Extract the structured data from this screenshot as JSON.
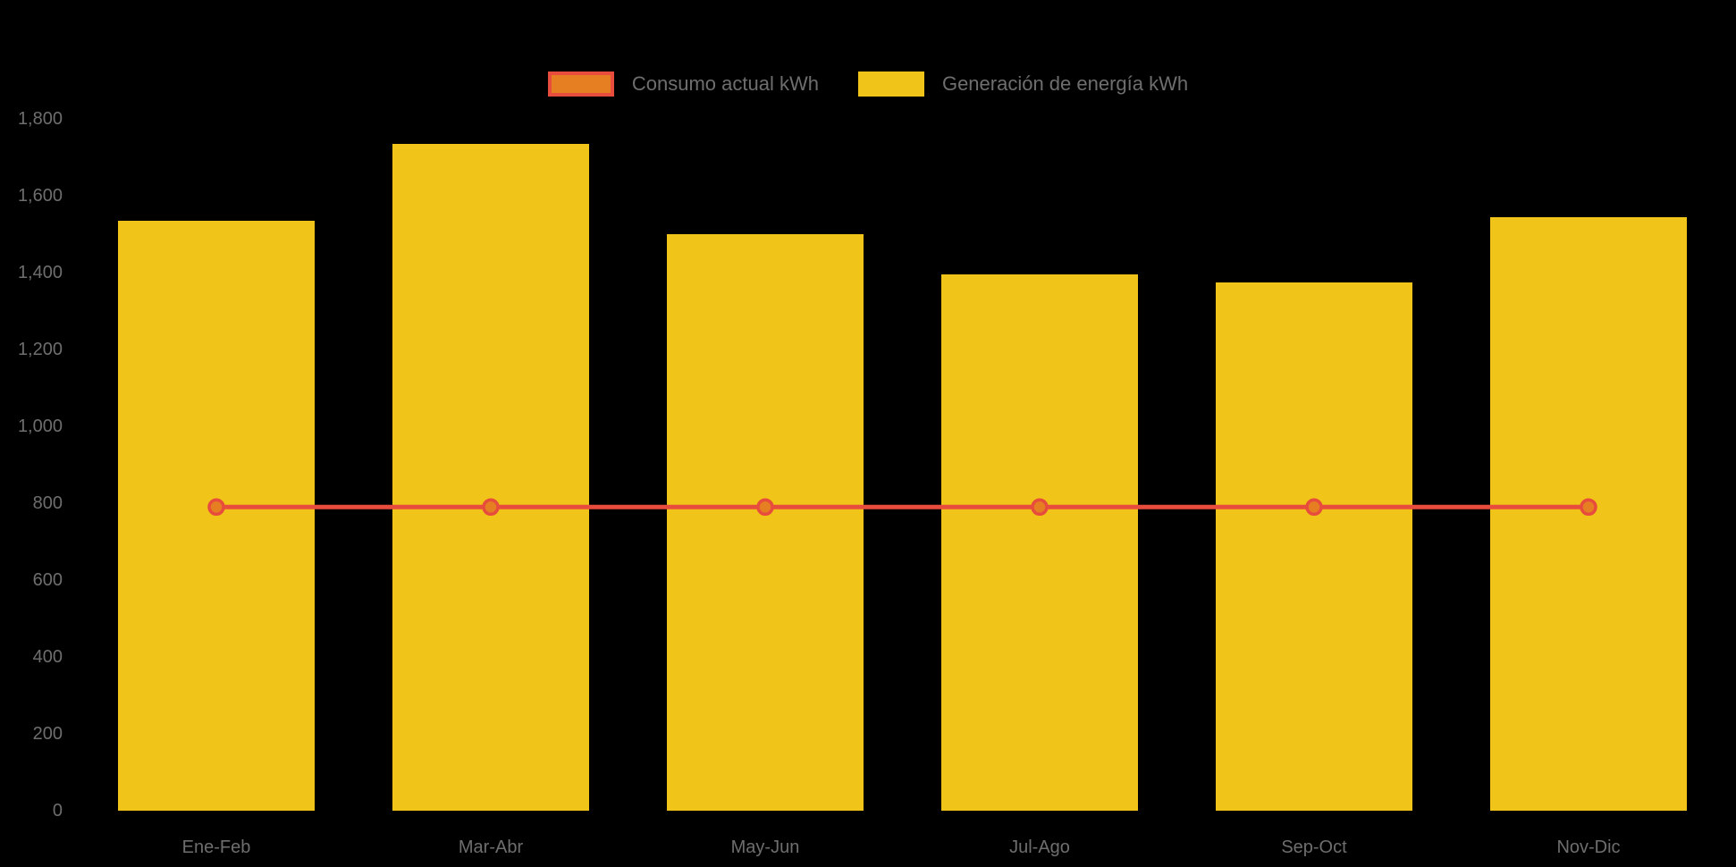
{
  "page": {
    "background": "#000000",
    "text_muted": "#6e6e6e"
  },
  "legend": {
    "items": [
      {
        "label": "Consumo actual kWh",
        "swatch_fill": "#e67e22",
        "swatch_border": "#e74c3c",
        "series_type": "line"
      },
      {
        "label": "Generación de energía kWh",
        "swatch_fill": "#f0c419",
        "swatch_border": "#f0c419",
        "series_type": "bar"
      }
    ]
  },
  "chart_data": {
    "type": "bar",
    "subtype": "bar-line-combo",
    "title": "",
    "xlabel": "",
    "ylabel": "",
    "categories": [
      "Ene-Feb",
      "Mar-Abr",
      "May-Jun",
      "Jul-Ago",
      "Sep-Oct",
      "Nov-Dic"
    ],
    "series": [
      {
        "name": "Generación de energía kWh",
        "type": "bar",
        "color": "#f0c419",
        "values": [
          1535,
          1735,
          1500,
          1395,
          1375,
          1545
        ]
      },
      {
        "name": "Consumo actual kWh",
        "type": "line",
        "color": "#e74c3c",
        "marker_fill": "#e67e22",
        "marker_stroke": "#e74c3c",
        "values": [
          790,
          790,
          790,
          790,
          790,
          790
        ]
      }
    ],
    "ylim": [
      0,
      1800
    ],
    "ytick_step": 200,
    "ytick_labels": [
      "0",
      "200",
      "400",
      "600",
      "800",
      "1,000",
      "1,200",
      "1,400",
      "1,600",
      "1,800"
    ],
    "grid": false,
    "legend_position": "top-center",
    "background": "#000000",
    "axis_label_color": "#6e6e6e"
  }
}
